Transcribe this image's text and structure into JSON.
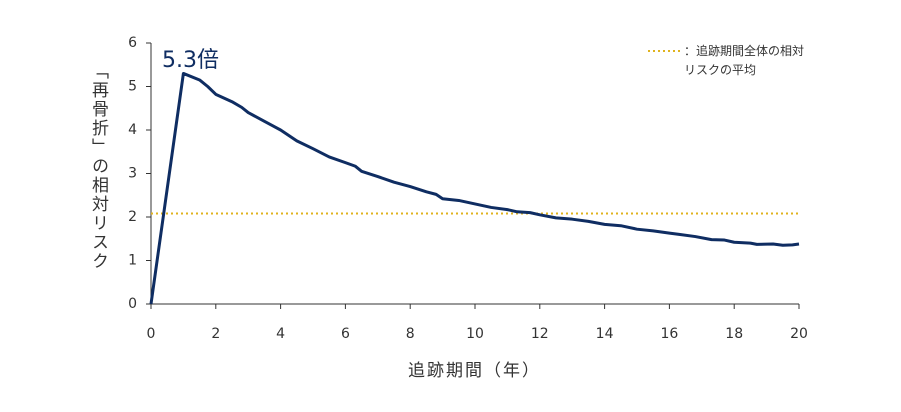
{
  "chart_data": {
    "type": "line",
    "ylabel": "「再骨折」の相対リスク",
    "xlabel": "追跡期間（年）",
    "annotation": "5.3倍",
    "x": [
      0,
      1,
      1.5,
      1.75,
      2,
      2.5,
      2.8,
      3,
      3.5,
      4,
      4.5,
      5,
      5.5,
      6,
      6.3,
      6.5,
      7,
      7.5,
      8,
      8.5,
      8.8,
      9,
      9.5,
      10,
      10.5,
      11,
      11.3,
      11.7,
      12,
      12.5,
      13,
      13.5,
      14,
      14.5,
      15,
      15.5,
      16,
      16.3,
      16.8,
      17.3,
      17.7,
      18,
      18.5,
      18.7,
      19.2,
      19.5,
      19.8,
      20
    ],
    "series": [
      {
        "color": "#0f2d62",
        "values": [
          0,
          5.3,
          5.15,
          5.0,
          4.82,
          4.65,
          4.52,
          4.4,
          4.2,
          4.0,
          3.75,
          3.57,
          3.38,
          3.25,
          3.17,
          3.05,
          2.93,
          2.8,
          2.7,
          2.58,
          2.52,
          2.42,
          2.38,
          2.3,
          2.22,
          2.17,
          2.12,
          2.1,
          2.05,
          1.98,
          1.95,
          1.9,
          1.83,
          1.8,
          1.72,
          1.68,
          1.63,
          1.6,
          1.55,
          1.48,
          1.47,
          1.42,
          1.4,
          1.37,
          1.38,
          1.35,
          1.36,
          1.38
        ]
      }
    ],
    "reference_line": {
      "name": "：追跡期間全体の相対リスクの平均",
      "value": 2.08,
      "color": "#e0b31e"
    },
    "xlim": [
      0,
      20
    ],
    "xticks": [
      0,
      2,
      4,
      6,
      8,
      10,
      12,
      14,
      16,
      18,
      20
    ],
    "ylim": [
      0,
      6
    ],
    "yticks": [
      0,
      1,
      2,
      3,
      4,
      5,
      6
    ],
    "grid": false,
    "legend": "top-right"
  }
}
